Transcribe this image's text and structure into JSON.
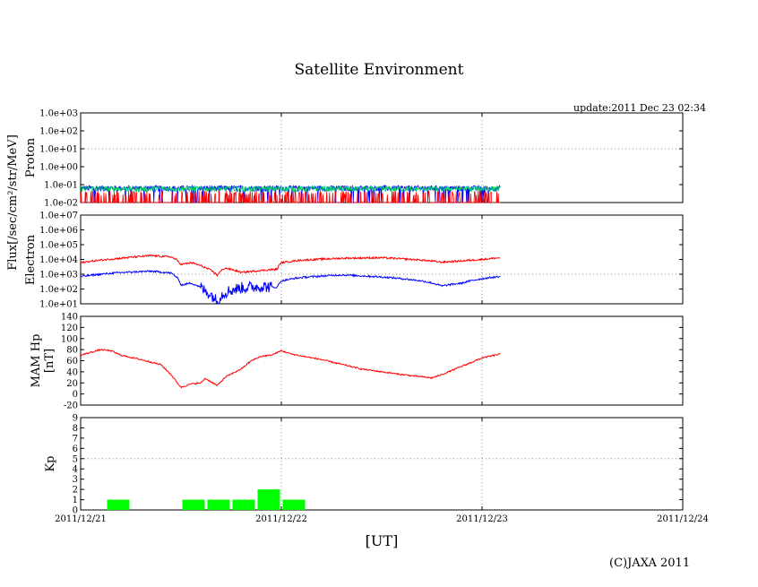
{
  "title": "Satellite Environment",
  "update_label": "update:2011 Dec 23 02:34",
  "copyright": "(C)JAXA 2011",
  "x_axis": {
    "unit_label": "[UT]",
    "tick_labels": [
      "2011/12/21",
      "2011/12/22",
      "2011/12/23",
      "2011/12/24"
    ],
    "range_days": [
      0,
      3
    ]
  },
  "shared_ylabel": "Flux[/sec/cm²/str/MeV]",
  "colors": {
    "red": "#ff0000",
    "blue": "#0000ff",
    "green": "#00cc66",
    "kp_green": "#00ff00",
    "grid": "#888888"
  },
  "chart_data": [
    {
      "type": "line",
      "name": "proton",
      "ylabel": "Proton",
      "yscale": "log",
      "ylim": [
        0.01,
        1000
      ],
      "ytick_labels": [
        "1.0e-02",
        "1.0e-01",
        "1.0e+00",
        "1.0e+01",
        "1.0e+02",
        "1.0e+03"
      ],
      "grid_y_at": [
        10
      ],
      "data_end_day": 2.09,
      "series": [
        {
          "name": "proton-high",
          "color": "#0000ff",
          "typical": 0.065,
          "low_spikes": 0.025
        },
        {
          "name": "proton-mid",
          "color": "#00cc66",
          "typical": 0.06
        },
        {
          "name": "proton-low",
          "color": "#ff0000",
          "typical": 0.014,
          "high_spikes": 0.02
        }
      ]
    },
    {
      "type": "line",
      "name": "electron",
      "ylabel": "Electron",
      "yscale": "log",
      "ylim": [
        10,
        10000000
      ],
      "ytick_labels": [
        "1.0e+01",
        "1.0e+02",
        "1.0e+03",
        "1.0e+04",
        "1.0e+05",
        "1.0e+06",
        "1.0e+07"
      ],
      "grid_y_at": [
        1000
      ],
      "series": [
        {
          "name": "electron-red",
          "color": "#ff0000",
          "x": [
            0,
            0.2,
            0.35,
            0.45,
            0.5,
            0.55,
            0.62,
            0.68,
            0.72,
            0.8,
            0.9,
            0.98,
            1.0,
            1.1,
            1.3,
            1.5,
            1.7,
            1.8,
            1.9,
            2.0,
            2.09
          ],
          "y": [
            6000,
            12000,
            18000,
            15000,
            4500,
            6000,
            2800,
            800,
            2600,
            1300,
            1800,
            2200,
            6000,
            9000,
            12000,
            13000,
            9000,
            6500,
            8000,
            10000,
            13000
          ]
        },
        {
          "name": "electron-blue",
          "color": "#0000ff",
          "x": [
            0,
            0.2,
            0.35,
            0.45,
            0.5,
            0.55,
            0.62,
            0.68,
            0.72,
            0.8,
            0.9,
            0.98,
            1.0,
            1.1,
            1.3,
            1.5,
            1.7,
            1.8,
            1.9,
            2.0,
            2.09
          ],
          "y": [
            700,
            1300,
            1600,
            1200,
            180,
            250,
            70,
            12,
            60,
            120,
            150,
            130,
            350,
            600,
            900,
            650,
            350,
            160,
            250,
            500,
            700
          ]
        }
      ]
    },
    {
      "type": "line",
      "name": "mam-hp",
      "ylabel": "MAM Hp",
      "ylabel2": "[nT]",
      "ylim": [
        -20,
        140
      ],
      "ytick_labels": [
        "-20",
        "0",
        "20",
        "40",
        "60",
        "80",
        "100",
        "120",
        "140"
      ],
      "grid_y_at": [],
      "series": [
        {
          "name": "hp",
          "color": "#ff0000",
          "x": [
            0,
            0.05,
            0.1,
            0.15,
            0.2,
            0.3,
            0.4,
            0.45,
            0.5,
            0.55,
            0.6,
            0.62,
            0.65,
            0.68,
            0.72,
            0.75,
            0.8,
            0.85,
            0.9,
            0.95,
            1.0,
            1.05,
            1.2,
            1.4,
            1.6,
            1.7,
            1.75,
            1.8,
            1.9,
            2.0,
            2.09
          ],
          "y": [
            70,
            75,
            80,
            78,
            70,
            62,
            53,
            35,
            12,
            18,
            20,
            28,
            22,
            15,
            30,
            36,
            45,
            60,
            68,
            70,
            78,
            72,
            62,
            45,
            35,
            31,
            29,
            35,
            50,
            65,
            72
          ]
        }
      ]
    },
    {
      "type": "bar",
      "name": "kp",
      "ylabel": "Kp",
      "ylim": [
        0,
        9
      ],
      "ytick_labels": [
        "0",
        "1",
        "2",
        "3",
        "4",
        "5",
        "6",
        "7",
        "8",
        "9"
      ],
      "grid_y_at": [
        5
      ],
      "bar_width_days": 0.125,
      "bars": [
        {
          "x": 0.125,
          "value": 1
        },
        {
          "x": 0.5,
          "value": 1
        },
        {
          "x": 0.625,
          "value": 1
        },
        {
          "x": 0.75,
          "value": 1
        },
        {
          "x": 0.875,
          "value": 2
        },
        {
          "x": 1.0,
          "value": 1
        }
      ]
    }
  ]
}
